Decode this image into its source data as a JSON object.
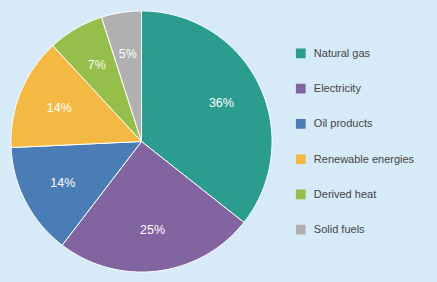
{
  "chart_data": {
    "type": "pie",
    "categories": [
      "Natural gas",
      "Electricity",
      "Oil products",
      "Renewable energies",
      "Derived heat",
      "Solid fuels"
    ],
    "values": [
      36,
      25,
      14,
      14,
      7,
      5
    ],
    "value_labels": [
      "36%",
      "25%",
      "14%",
      "14%",
      "7%",
      "5%"
    ],
    "colors": [
      "#2a9d8f",
      "#8264a0",
      "#4a7db5",
      "#f4b942",
      "#96be4b",
      "#b0b0b0"
    ],
    "data_labels": true,
    "legend": "right"
  }
}
